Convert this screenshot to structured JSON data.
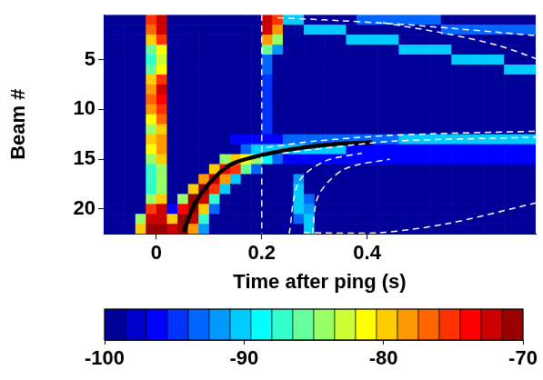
{
  "chart_data": {
    "type": "heatmap",
    "x_label": "Time after ping (s)",
    "y_label": "Beam #",
    "xlim": [
      -0.1,
      0.72
    ],
    "xticks": [
      0,
      0.2,
      0.4
    ],
    "ylim": [
      22.5,
      0.5
    ],
    "yticks": [
      5,
      10,
      15,
      20
    ],
    "x_edges": [
      -0.1,
      -0.08,
      -0.06,
      -0.04,
      -0.02,
      0,
      0.02,
      0.04,
      0.06,
      0.08,
      0.1,
      0.12,
      0.14,
      0.16,
      0.18,
      0.2,
      0.22,
      0.24,
      0.26,
      0.28,
      0.3,
      0.32,
      0.34,
      0.36,
      0.38,
      0.4,
      0.42,
      0.44,
      0.46,
      0.48,
      0.5,
      0.52,
      0.54,
      0.56,
      0.58,
      0.6,
      0.62,
      0.64,
      0.66,
      0.68,
      0.7,
      0.72
    ],
    "y_edges": [
      0.5,
      1.5,
      2.5,
      3.5,
      4.5,
      5.5,
      6.5,
      7.5,
      8.5,
      9.5,
      10.5,
      11.5,
      12.5,
      13.5,
      14.5,
      15.5,
      16.5,
      17.5,
      18.5,
      19.5,
      20.5,
      21.5,
      22.5
    ],
    "z": [
      [
        -100,
        -100,
        -100,
        -100,
        -75,
        -72,
        -100,
        -100,
        -100,
        -100,
        -100,
        -100,
        -100,
        -100,
        -100,
        -72,
        -76,
        -91,
        -91,
        -100,
        -100,
        -100,
        -100,
        -100,
        -94,
        -94,
        -94,
        -94,
        -94,
        -94,
        -94,
        -94,
        -100,
        -100,
        -100,
        -100,
        -100,
        -100,
        -100,
        -100,
        -100
      ],
      [
        -100,
        -100,
        -100,
        -100,
        -77,
        -73,
        -100,
        -100,
        -100,
        -100,
        -100,
        -100,
        -100,
        -100,
        -100,
        -73,
        -78,
        -100,
        -100,
        -91,
        -91,
        -91,
        -91,
        -100,
        -100,
        -100,
        -100,
        -100,
        -100,
        -100,
        -100,
        -100,
        -94,
        -94,
        -94,
        -94,
        -94,
        -94,
        -94,
        -94,
        -94
      ],
      [
        -100,
        -100,
        -100,
        -100,
        -80,
        -76,
        -100,
        -100,
        -100,
        -100,
        -100,
        -100,
        -100,
        -100,
        -100,
        -78,
        -84,
        -100,
        -100,
        -100,
        -100,
        -100,
        -100,
        -91,
        -91,
        -91,
        -91,
        -91,
        -100,
        -100,
        -100,
        -100,
        -100,
        -100,
        -100,
        -100,
        -100,
        -100,
        -100,
        -100,
        -100
      ],
      [
        -100,
        -100,
        -100,
        -100,
        -86,
        -82,
        -100,
        -100,
        -100,
        -100,
        -100,
        -100,
        -100,
        -100,
        -100,
        -86,
        -92,
        -100,
        -100,
        -100,
        -100,
        -100,
        -100,
        -100,
        -100,
        -100,
        -100,
        -100,
        -91,
        -91,
        -91,
        -91,
        -91,
        -100,
        -100,
        -100,
        -100,
        -100,
        -100,
        -100,
        -100
      ],
      [
        -100,
        -100,
        -100,
        -100,
        -88,
        -83,
        -100,
        -100,
        -100,
        -100,
        -100,
        -100,
        -100,
        -100,
        -100,
        -93,
        -100,
        -100,
        -100,
        -100,
        -100,
        -100,
        -100,
        -100,
        -100,
        -100,
        -100,
        -100,
        -100,
        -100,
        -100,
        -100,
        -100,
        -91,
        -91,
        -91,
        -91,
        -91,
        -100,
        -100,
        -100
      ],
      [
        -100,
        -100,
        -100,
        -100,
        -86,
        -81,
        -100,
        -100,
        -100,
        -100,
        -100,
        -100,
        -100,
        -100,
        -100,
        -94,
        -100,
        -100,
        -100,
        -100,
        -100,
        -100,
        -100,
        -100,
        -100,
        -100,
        -100,
        -100,
        -100,
        -100,
        -100,
        -100,
        -100,
        -100,
        -100,
        -100,
        -100,
        -100,
        -91,
        -91,
        -91
      ],
      [
        -100,
        -100,
        -100,
        -100,
        -80,
        -76,
        -100,
        -100,
        -100,
        -100,
        -100,
        -100,
        -100,
        -100,
        -100,
        -95,
        -100,
        -100,
        -100,
        -100,
        -100,
        -100,
        -100,
        -100,
        -100,
        -100,
        -100,
        -100,
        -100,
        -100,
        -100,
        -100,
        -100,
        -100,
        -100,
        -100,
        -100,
        -100,
        -100,
        -100,
        -100
      ],
      [
        -100,
        -100,
        -100,
        -100,
        -78,
        -73,
        -100,
        -100,
        -100,
        -100,
        -100,
        -100,
        -100,
        -100,
        -100,
        -95,
        -100,
        -100,
        -100,
        -100,
        -100,
        -100,
        -100,
        -100,
        -100,
        -100,
        -100,
        -100,
        -100,
        -100,
        -100,
        -100,
        -100,
        -100,
        -100,
        -100,
        -100,
        -100,
        -100,
        -100,
        -100
      ],
      [
        -100,
        -100,
        -100,
        -100,
        -77,
        -74,
        -100,
        -100,
        -100,
        -100,
        -100,
        -100,
        -100,
        -100,
        -100,
        -95,
        -100,
        -100,
        -100,
        -100,
        -100,
        -100,
        -100,
        -100,
        -100,
        -100,
        -100,
        -100,
        -100,
        -100,
        -100,
        -100,
        -100,
        -100,
        -100,
        -100,
        -100,
        -100,
        -100,
        -100,
        -100
      ],
      [
        -100,
        -100,
        -100,
        -100,
        -79,
        -75,
        -100,
        -100,
        -100,
        -100,
        -100,
        -100,
        -100,
        -100,
        -100,
        -95,
        -100,
        -100,
        -100,
        -100,
        -100,
        -100,
        -100,
        -100,
        -100,
        -100,
        -100,
        -100,
        -100,
        -100,
        -100,
        -100,
        -100,
        -100,
        -100,
        -100,
        -100,
        -100,
        -100,
        -100,
        -100
      ],
      [
        -100,
        -100,
        -100,
        -100,
        -81,
        -77,
        -100,
        -100,
        -100,
        -100,
        -100,
        -100,
        -100,
        -100,
        -100,
        -95,
        -100,
        -100,
        -100,
        -100,
        -100,
        -100,
        -100,
        -100,
        -100,
        -100,
        -100,
        -100,
        -100,
        -100,
        -100,
        -100,
        -100,
        -100,
        -100,
        -100,
        -100,
        -100,
        -100,
        -100,
        -100
      ],
      [
        -100,
        -100,
        -100,
        -100,
        -84,
        -80,
        -100,
        -100,
        -100,
        -100,
        -100,
        -100,
        -100,
        -100,
        -100,
        -95,
        -100,
        -100,
        -100,
        -100,
        -100,
        -100,
        -100,
        -100,
        -100,
        -100,
        -100,
        -100,
        -100,
        -100,
        -100,
        -100,
        -100,
        -100,
        -100,
        -100,
        -100,
        -100,
        -100,
        -100,
        -100
      ],
      [
        -100,
        -100,
        -100,
        -100,
        -80,
        -78,
        -100,
        -100,
        -100,
        -100,
        -100,
        -100,
        -96,
        -96,
        -96,
        -96,
        -96,
        -94,
        -94,
        -94,
        -94,
        -94,
        -94,
        -94,
        -94,
        -94,
        -94,
        -94,
        -91,
        -91,
        -91,
        -91,
        -91,
        -91,
        -91,
        -91,
        -91,
        -91,
        -91,
        -91,
        -91
      ],
      [
        -100,
        -100,
        -100,
        -100,
        -82,
        -79,
        -100,
        -100,
        -100,
        -100,
        -100,
        -100,
        -100,
        -93,
        -90,
        -90,
        -90,
        -90,
        -90,
        -90,
        -90,
        -90,
        -90,
        -96,
        -96,
        -96,
        -96,
        -96,
        -96,
        -96,
        -96,
        -96,
        -96,
        -96,
        -96,
        -96,
        -96,
        -96,
        -96,
        -96,
        -96
      ],
      [
        -100,
        -100,
        -100,
        -100,
        -85,
        -80,
        -100,
        -100,
        -100,
        -100,
        -100,
        -84,
        -80,
        -81,
        -85,
        -89,
        -93,
        -97,
        -97,
        -97,
        -97,
        -97,
        -97,
        -97,
        -97,
        -97,
        -97,
        -97,
        -97,
        -97,
        -97,
        -97,
        -97,
        -97,
        -97,
        -97,
        -97,
        -97,
        -97,
        -97,
        -97
      ],
      [
        -100,
        -100,
        -100,
        -100,
        -87,
        -84,
        -100,
        -100,
        -100,
        -100,
        -80,
        -74,
        -76,
        -86,
        -94,
        -100,
        -100,
        -100,
        -100,
        -100,
        -100,
        -100,
        -100,
        -100,
        -100,
        -100,
        -100,
        -100,
        -100,
        -100,
        -100,
        -100,
        -100,
        -100,
        -100,
        -100,
        -100,
        -100,
        -100,
        -100,
        -100
      ],
      [
        -100,
        -100,
        -100,
        -100,
        -88,
        -85,
        -100,
        -100,
        -100,
        -78,
        -72,
        -78,
        -90,
        -100,
        -100,
        -100,
        -100,
        -100,
        -92,
        -100,
        -100,
        -100,
        -100,
        -100,
        -100,
        -100,
        -100,
        -100,
        -100,
        -100,
        -100,
        -100,
        -100,
        -100,
        -100,
        -100,
        -100,
        -100,
        -100,
        -100,
        -100
      ],
      [
        -100,
        -100,
        -100,
        -100,
        -87,
        -84,
        -100,
        -100,
        -80,
        -71,
        -76,
        -90,
        -100,
        -100,
        -100,
        -100,
        -100,
        -100,
        -91,
        -100,
        -100,
        -100,
        -100,
        -100,
        -100,
        -100,
        -100,
        -100,
        -100,
        -100,
        -100,
        -100,
        -100,
        -100,
        -100,
        -100,
        -100,
        -100,
        -100,
        -100,
        -100
      ],
      [
        -100,
        -100,
        -100,
        -100,
        -84,
        -80,
        -100,
        -84,
        -71,
        -73,
        -88,
        -100,
        -100,
        -100,
        -100,
        -100,
        -100,
        -100,
        -91,
        -94,
        -100,
        -100,
        -100,
        -100,
        -100,
        -100,
        -100,
        -100,
        -100,
        -100,
        -100,
        -100,
        -100,
        -100,
        -100,
        -100,
        -100,
        -100,
        -100,
        -100,
        -100
      ],
      [
        -100,
        -100,
        -100,
        -100,
        -76,
        -73,
        -96,
        -74,
        -71,
        -80,
        -94,
        -100,
        -100,
        -100,
        -100,
        -100,
        -100,
        -100,
        -90,
        -92,
        -100,
        -100,
        -100,
        -100,
        -100,
        -100,
        -100,
        -100,
        -100,
        -100,
        -100,
        -100,
        -100,
        -100,
        -100,
        -100,
        -100,
        -100,
        -100,
        -100,
        -100
      ],
      [
        -100,
        -100,
        -100,
        -84,
        -73,
        -72,
        -80,
        -71,
        -73,
        -88,
        -100,
        -100,
        -100,
        -100,
        -100,
        -100,
        -100,
        -100,
        -93,
        -90,
        -100,
        -100,
        -100,
        -100,
        -100,
        -100,
        -100,
        -100,
        -100,
        -100,
        -100,
        -100,
        -100,
        -100,
        -100,
        -100,
        -100,
        -100,
        -100,
        -100,
        -100
      ],
      [
        -100,
        -100,
        -100,
        -80,
        -71,
        -71,
        -72,
        -71,
        -78,
        -92,
        -100,
        -100,
        -100,
        -100,
        -100,
        -100,
        -100,
        -100,
        -100,
        -91,
        -100,
        -100,
        -100,
        -100,
        -100,
        -100,
        -100,
        -100,
        -100,
        -100,
        -100,
        -100,
        -100,
        -100,
        -100,
        -100,
        -100,
        -100,
        -100,
        -100,
        -100
      ]
    ],
    "colorbar": {
      "range": [
        -100,
        -70
      ],
      "ticks": [
        -100,
        -90,
        -80,
        -70
      ]
    },
    "series": [
      {
        "color": "#ffffff",
        "line_style": "dashed",
        "x": [
          0.2,
          0.2
        ],
        "y": [
          0.5,
          22.5
        ]
      },
      {
        "color": "#ffffff",
        "line_style": "dashed",
        "x": [
          0.23,
          0.35,
          0.5,
          0.72
        ],
        "y": [
          0.8,
          1.1,
          1.6,
          2.6
        ]
      },
      {
        "color": "#ffffff",
        "line_style": "dashed",
        "x": [
          0.43,
          0.55,
          0.65,
          0.72
        ],
        "y": [
          1.3,
          2.4,
          3.6,
          4.9
        ]
      },
      {
        "color": "#ffffff",
        "line_style": "dashed",
        "x": [
          0.21,
          0.3,
          0.45,
          0.72
        ],
        "y": [
          13.8,
          13.2,
          12.6,
          12.2
        ]
      },
      {
        "color": "#ffffff",
        "line_style": "dashed",
        "x": [
          0.24,
          0.32,
          0.45,
          0.72
        ],
        "y": [
          14.4,
          13.9,
          13.2,
          12.8
        ]
      },
      {
        "color": "#ffffff",
        "line_style": "dashed",
        "x": [
          0.252,
          0.27,
          0.32,
          0.39
        ],
        "y": [
          22.5,
          17.3,
          15.2,
          14.4
        ]
      },
      {
        "color": "#ffffff",
        "line_style": "dashed",
        "x": [
          0.296,
          0.308,
          0.357,
          0.443
        ],
        "y": [
          22.5,
          18.6,
          16.0,
          15.0
        ]
      },
      {
        "color": "#ffffff",
        "line_style": "dashed",
        "x": [
          0.28,
          0.42,
          0.55,
          0.72
        ],
        "y": [
          22.4,
          22.4,
          21.5,
          19.4
        ]
      },
      {
        "color": "#000000",
        "line_style": "solid",
        "x": [
          0.052,
          0.07,
          0.096,
          0.139,
          0.2,
          0.27,
          0.34,
          0.41
        ],
        "y": [
          22.3,
          19.8,
          17.7,
          15.6,
          14.6,
          13.9,
          13.5,
          13.3
        ]
      }
    ]
  }
}
